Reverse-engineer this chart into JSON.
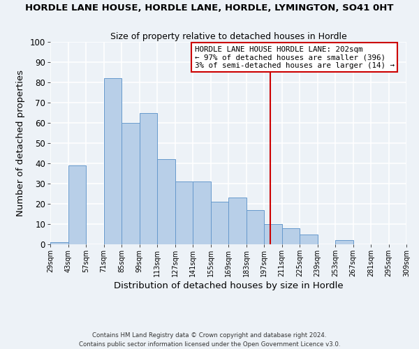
{
  "title": "HORDLE LANE HOUSE, HORDLE LANE, HORDLE, LYMINGTON, SO41 0HT",
  "subtitle": "Size of property relative to detached houses in Hordle",
  "xlabel": "Distribution of detached houses by size in Hordle",
  "ylabel": "Number of detached properties",
  "footer_line1": "Contains HM Land Registry data © Crown copyright and database right 2024.",
  "footer_line2": "Contains public sector information licensed under the Open Government Licence v3.0.",
  "bar_edges": [
    29,
    43,
    57,
    71,
    85,
    99,
    113,
    127,
    141,
    155,
    169,
    183,
    197,
    211,
    225,
    239,
    253,
    267,
    281,
    295,
    309
  ],
  "bar_heights": [
    1,
    39,
    0,
    82,
    60,
    65,
    42,
    31,
    31,
    21,
    23,
    17,
    10,
    8,
    5,
    0,
    2,
    0,
    0,
    0
  ],
  "bar_color": "#b8cfe8",
  "bar_edge_color": "#6699cc",
  "highlight_x": 202,
  "vline_color": "#cc0000",
  "annotation_text": "HORDLE LANE HOUSE HORDLE LANE: 202sqm\n← 97% of detached houses are smaller (396)\n3% of semi-detached houses are larger (14) →",
  "annotation_box_color": "#ffffff",
  "annotation_box_edge": "#cc0000",
  "xlim": [
    29,
    309
  ],
  "ylim": [
    0,
    100
  ],
  "yticks": [
    0,
    10,
    20,
    30,
    40,
    50,
    60,
    70,
    80,
    90,
    100
  ],
  "xtick_labels": [
    "29sqm",
    "43sqm",
    "57sqm",
    "71sqm",
    "85sqm",
    "99sqm",
    "113sqm",
    "127sqm",
    "141sqm",
    "155sqm",
    "169sqm",
    "183sqm",
    "197sqm",
    "211sqm",
    "225sqm",
    "239sqm",
    "253sqm",
    "267sqm",
    "281sqm",
    "295sqm",
    "309sqm"
  ],
  "background_color": "#edf2f7",
  "grid_color": "#ffffff"
}
